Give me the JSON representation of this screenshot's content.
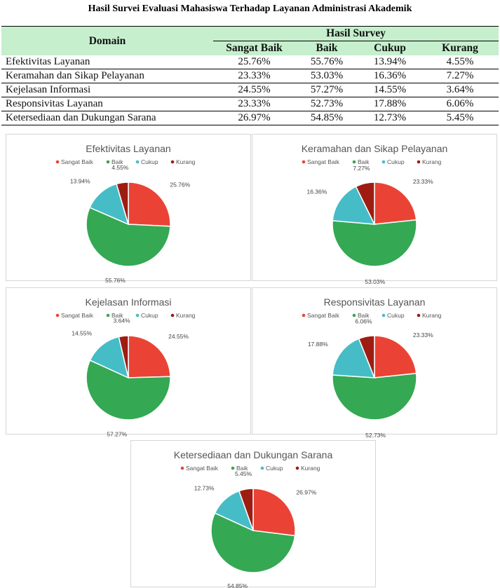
{
  "title": "Hasil Survei Evaluasi Mahasiswa Terhadap Layanan Administrasi Akademik",
  "table": {
    "domain_header": "Domain",
    "group_header": "Hasil Survey",
    "columns": [
      "Sangat Baik",
      "Baik",
      "Cukup",
      "Kurang"
    ],
    "rows": [
      {
        "domain": "Efektivitas Layanan",
        "values": [
          "25.76%",
          "55.76%",
          "13.94%",
          "4.55%"
        ]
      },
      {
        "domain": "Keramahan dan Sikap Pelayanan",
        "values": [
          "23.33%",
          "53.03%",
          "16.36%",
          "7.27%"
        ]
      },
      {
        "domain": "Kejelasan Informasi",
        "values": [
          "24.55%",
          "57.27%",
          "14.55%",
          "3.64%"
        ]
      },
      {
        "domain": "Responsivitas Layanan",
        "values": [
          "23.33%",
          "52.73%",
          "17.88%",
          "6.06%"
        ]
      },
      {
        "domain": "Ketersediaan dan Dukungan Sarana",
        "values": [
          "26.97%",
          "54.85%",
          "12.73%",
          "5.45%"
        ]
      }
    ]
  },
  "colors": {
    "Sangat Baik": "#ea4335",
    "Baik": "#34a853",
    "Cukup": "#46bdc6",
    "Kurang": "#9e1c12"
  },
  "chart_data": [
    {
      "type": "pie",
      "title": "Efektivitas Layanan",
      "categories": [
        "Sangat Baik",
        "Baik",
        "Cukup",
        "Kurang"
      ],
      "values": [
        25.76,
        55.76,
        13.94,
        4.55
      ],
      "labels": [
        "25.76%",
        "55.76%",
        "13.94%",
        "4.55%"
      ],
      "legend": "top"
    },
    {
      "type": "pie",
      "title": "Keramahan dan Sikap Pelayanan",
      "categories": [
        "Sangat Baik",
        "Baik",
        "Cukup",
        "Kurang"
      ],
      "values": [
        23.33,
        53.03,
        16.36,
        7.27
      ],
      "labels": [
        "23.33%",
        "53.03%",
        "16.36%",
        "7.27%"
      ],
      "legend": "top"
    },
    {
      "type": "pie",
      "title": "Kejelasan Informasi",
      "categories": [
        "Sangat Baik",
        "Baik",
        "Cukup",
        "Kurang"
      ],
      "values": [
        24.55,
        57.27,
        14.55,
        3.64
      ],
      "labels": [
        "24.55%",
        "57.27%",
        "14.55%",
        "3.64%"
      ],
      "legend": "top"
    },
    {
      "type": "pie",
      "title": "Responsivitas Layanan",
      "categories": [
        "Sangat Baik",
        "Baik",
        "Cukup",
        "Kurang"
      ],
      "values": [
        23.33,
        52.73,
        17.88,
        6.06
      ],
      "labels": [
        "23.33%",
        "52.73%",
        "17.88%",
        "6.06%"
      ],
      "legend": "top"
    },
    {
      "type": "pie",
      "title": "Ketersediaan dan Dukungan Sarana",
      "categories": [
        "Sangat Baik",
        "Baik",
        "Cukup",
        "Kurang"
      ],
      "values": [
        26.97,
        54.85,
        12.73,
        5.45
      ],
      "labels": [
        "26.97%",
        "54.85%",
        "12.73%",
        "5.45%"
      ],
      "legend": "top"
    }
  ]
}
